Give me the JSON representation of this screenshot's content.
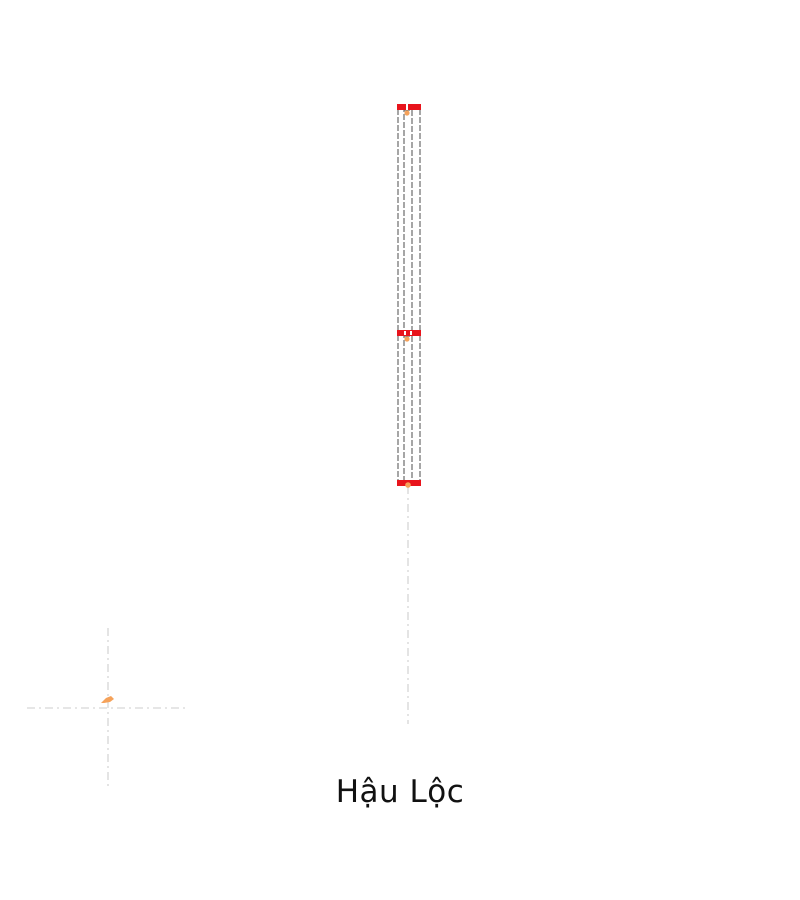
{
  "station": {
    "name": "Hậu Lộc"
  },
  "colors": {
    "track_outline": "#6b6b6b",
    "track_fill": "#ffffff",
    "stop_bar": "#e8141c",
    "stop_marker": "#f5a25a",
    "guide_line": "#d6d6d6",
    "text": "#111111"
  },
  "icons": {
    "stop_marker": "position-marker-icon",
    "locator": "crosshair-icon"
  }
}
